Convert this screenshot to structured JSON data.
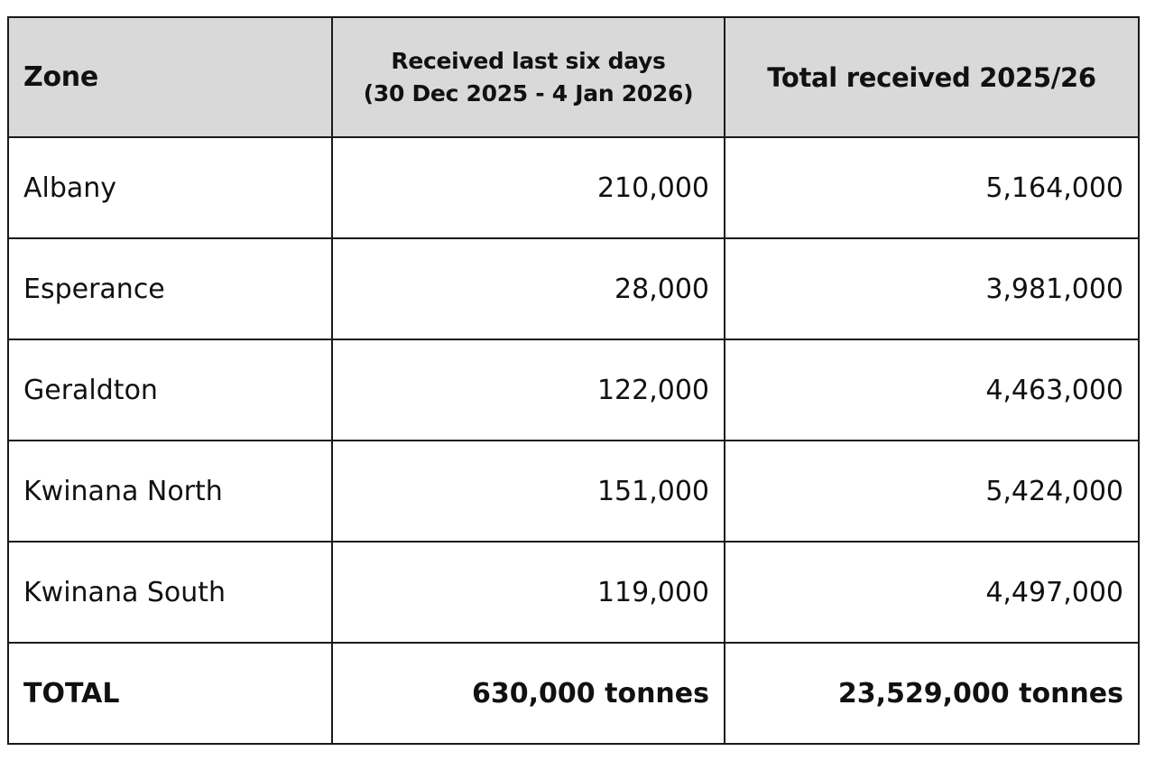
{
  "table": {
    "headers": {
      "zone": "Zone",
      "last_six_days_line1": "Received last six days",
      "last_six_days_line2": "(30 Dec 2025 - 4 Jan 2026)",
      "total_received": "Total received 2025/26"
    },
    "rows": [
      {
        "zone": "Albany",
        "last_six_days": "210,000",
        "total": "5,164,000"
      },
      {
        "zone": "Esperance",
        "last_six_days": "28,000",
        "total": "3,981,000"
      },
      {
        "zone": "Geraldton",
        "last_six_days": "122,000",
        "total": "4,463,000"
      },
      {
        "zone": "Kwinana North",
        "last_six_days": "151,000",
        "total": "5,424,000"
      },
      {
        "zone": "Kwinana South",
        "last_six_days": "119,000",
        "total": "4,497,000"
      }
    ],
    "total_row": {
      "label": "TOTAL",
      "last_six_days": "630,000 tonnes",
      "total": "23,529,000 tonnes"
    }
  },
  "colors": {
    "header_bg": "#d9d9d9",
    "border": "#1a1a1a",
    "text": "#111111"
  }
}
